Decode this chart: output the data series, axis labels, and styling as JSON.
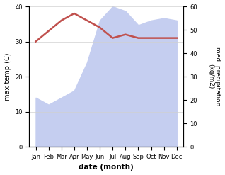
{
  "months": [
    "Jan",
    "Feb",
    "Mar",
    "Apr",
    "May",
    "Jun",
    "Jul",
    "Aug",
    "Sep",
    "Oct",
    "Nov",
    "Dec"
  ],
  "month_x": [
    0,
    1,
    2,
    3,
    4,
    5,
    6,
    7,
    8,
    9,
    10,
    11
  ],
  "temperature": [
    30,
    33,
    36,
    38,
    36,
    34,
    31,
    32,
    31,
    31,
    31,
    31
  ],
  "precipitation": [
    21,
    18,
    21,
    24,
    36,
    54,
    60,
    58,
    52,
    54,
    55,
    54
  ],
  "temp_color": "#c0504d",
  "precip_fill_color": "#c5cef0",
  "title": "",
  "xlabel": "date (month)",
  "ylabel_left": "max temp (C)",
  "ylabel_right": "med. precipitation\n(kg/m2)",
  "ylim_left": [
    0,
    40
  ],
  "ylim_right": [
    0,
    60
  ],
  "bg_color": "#ffffff",
  "grid_color": "#d0d0d0"
}
